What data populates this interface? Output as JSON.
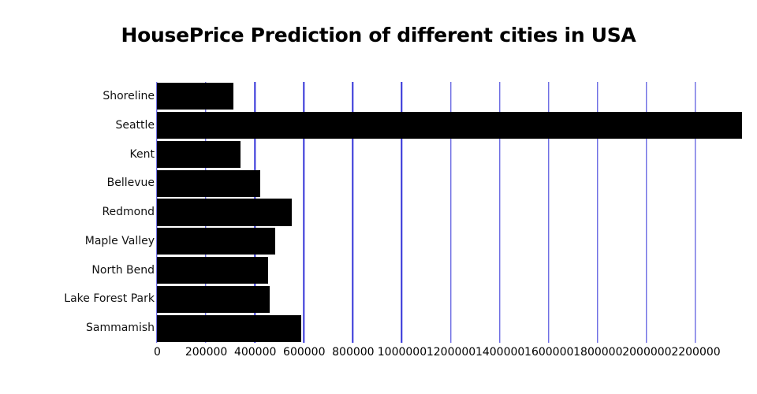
{
  "chart_data": {
    "type": "bar",
    "orientation": "horizontal",
    "title": "HousePrice Prediction of different cities in USA",
    "xlabel": "",
    "ylabel": "",
    "categories": [
      "Shoreline",
      "Seattle",
      "Kent",
      "Bellevue",
      "Redmond",
      "Maple Valley",
      "North Bend",
      "Lake Forest Park",
      "Sammamish"
    ],
    "values": [
      312000,
      2390000,
      342000,
      421000,
      550000,
      483000,
      453000,
      462000,
      589000
    ],
    "xlim": [
      0,
      2390000
    ],
    "xticks": [
      0,
      200000,
      400000,
      600000,
      800000,
      1000000,
      1200000,
      1400000,
      1600000,
      1800000,
      2000000,
      2200000
    ],
    "xtick_labels": [
      "0",
      "200000",
      "400000",
      "600000",
      "800000",
      "1000000",
      "1200000",
      "1400000",
      "1600000",
      "1800000",
      "2000000",
      "2200000"
    ],
    "grid": true,
    "legend": false,
    "bar_color": "#000000",
    "grid_color": "#3232d8",
    "background_color": "#ffffff",
    "text_color": "#111111"
  }
}
